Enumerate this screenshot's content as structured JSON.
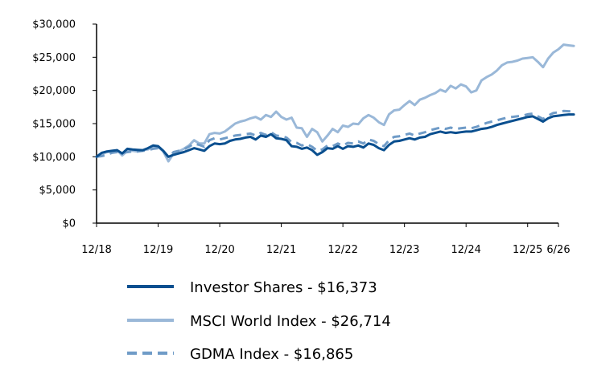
{
  "chart_data": {
    "type": "line",
    "title": "",
    "xlabel": "",
    "ylabel": "",
    "ylim": [
      0,
      30000
    ],
    "y_ticks": [
      0,
      5000,
      10000,
      15000,
      20000,
      25000,
      30000
    ],
    "y_tick_labels": [
      "$0",
      "$5,000",
      "$10,000",
      "$15,000",
      "$20,000",
      "$25,000",
      "$30,000"
    ],
    "x_tick_labels": [
      "12/18",
      "12/19",
      "12/20",
      "12/21",
      "12/22",
      "12/23",
      "12/24",
      "12/25",
      "6/26"
    ],
    "x_unit": "months since 12/18",
    "x_tick_positions": [
      0,
      12,
      24,
      36,
      48,
      60,
      72,
      84,
      90
    ],
    "xlim": [
      0,
      96
    ],
    "grid": false,
    "legend_position": "bottom",
    "series": [
      {
        "name": "Investor Shares - $16,373",
        "color": "#0a4f8f",
        "style": "solid",
        "points": [
          [
            0,
            10000
          ],
          [
            1,
            10600
          ],
          [
            2,
            10800
          ],
          [
            3,
            10900
          ],
          [
            4,
            11000
          ],
          [
            5,
            10500
          ],
          [
            6,
            11200
          ],
          [
            7,
            11100
          ],
          [
            8,
            11050
          ],
          [
            9,
            11000
          ],
          [
            10,
            11300
          ],
          [
            11,
            11700
          ],
          [
            12,
            11600
          ],
          [
            13,
            10900
          ],
          [
            14,
            10000
          ],
          [
            15,
            10300
          ],
          [
            16,
            10500
          ],
          [
            17,
            10700
          ],
          [
            18,
            11000
          ],
          [
            19,
            11300
          ],
          [
            20,
            11100
          ],
          [
            21,
            10900
          ],
          [
            22,
            11600
          ],
          [
            23,
            12000
          ],
          [
            24,
            11900
          ],
          [
            25,
            12000
          ],
          [
            26,
            12400
          ],
          [
            27,
            12600
          ],
          [
            28,
            12700
          ],
          [
            29,
            12900
          ],
          [
            30,
            13000
          ],
          [
            31,
            12600
          ],
          [
            32,
            13200
          ],
          [
            33,
            13000
          ],
          [
            34,
            13400
          ],
          [
            35,
            12800
          ],
          [
            36,
            12700
          ],
          [
            37,
            12500
          ],
          [
            38,
            11600
          ],
          [
            39,
            11500
          ],
          [
            40,
            11200
          ],
          [
            41,
            11400
          ],
          [
            42,
            11000
          ],
          [
            43,
            10300
          ],
          [
            44,
            10700
          ],
          [
            45,
            11300
          ],
          [
            46,
            11200
          ],
          [
            47,
            11600
          ],
          [
            48,
            11200
          ],
          [
            49,
            11600
          ],
          [
            50,
            11500
          ],
          [
            51,
            11700
          ],
          [
            52,
            11400
          ],
          [
            53,
            12000
          ],
          [
            54,
            11800
          ],
          [
            55,
            11300
          ],
          [
            56,
            11000
          ],
          [
            57,
            11800
          ],
          [
            58,
            12300
          ],
          [
            59,
            12400
          ],
          [
            60,
            12600
          ],
          [
            61,
            12800
          ],
          [
            62,
            12600
          ],
          [
            63,
            12900
          ],
          [
            64,
            13000
          ],
          [
            65,
            13400
          ],
          [
            66,
            13600
          ],
          [
            67,
            13800
          ],
          [
            68,
            13600
          ],
          [
            69,
            13700
          ],
          [
            70,
            13600
          ],
          [
            71,
            13700
          ],
          [
            72,
            13800
          ],
          [
            73,
            13800
          ],
          [
            74,
            14000
          ],
          [
            75,
            14200
          ],
          [
            76,
            14300
          ],
          [
            77,
            14500
          ],
          [
            78,
            14800
          ],
          [
            79,
            15000
          ],
          [
            80,
            15200
          ],
          [
            81,
            15400
          ],
          [
            82,
            15600
          ],
          [
            83,
            15800
          ],
          [
            84,
            16000
          ],
          [
            85,
            16100
          ],
          [
            86,
            15700
          ],
          [
            87,
            15300
          ],
          [
            88,
            15800
          ],
          [
            89,
            16100
          ],
          [
            90,
            16200
          ],
          [
            91,
            16300
          ],
          [
            92,
            16373
          ],
          [
            93,
            16373
          ]
        ]
      },
      {
        "name": "MSCI World Index - $26,714",
        "color": "#9ab8d8",
        "style": "solid",
        "points": [
          [
            0,
            10000
          ],
          [
            1,
            10400
          ],
          [
            2,
            10700
          ],
          [
            3,
            10800
          ],
          [
            4,
            11000
          ],
          [
            5,
            10200
          ],
          [
            6,
            10900
          ],
          [
            7,
            10900
          ],
          [
            8,
            10800
          ],
          [
            9,
            11000
          ],
          [
            10,
            11100
          ],
          [
            11,
            11500
          ],
          [
            12,
            11500
          ],
          [
            13,
            10800
          ],
          [
            14,
            9300
          ],
          [
            15,
            10500
          ],
          [
            16,
            10800
          ],
          [
            17,
            11200
          ],
          [
            18,
            11700
          ],
          [
            19,
            12500
          ],
          [
            20,
            12000
          ],
          [
            21,
            12000
          ],
          [
            22,
            13400
          ],
          [
            23,
            13600
          ],
          [
            24,
            13500
          ],
          [
            25,
            13800
          ],
          [
            26,
            14400
          ],
          [
            27,
            15000
          ],
          [
            28,
            15300
          ],
          [
            29,
            15500
          ],
          [
            30,
            15800
          ],
          [
            31,
            16000
          ],
          [
            32,
            15600
          ],
          [
            33,
            16300
          ],
          [
            34,
            16000
          ],
          [
            35,
            16800
          ],
          [
            36,
            16000
          ],
          [
            37,
            15600
          ],
          [
            38,
            15900
          ],
          [
            39,
            14400
          ],
          [
            40,
            14300
          ],
          [
            41,
            13000
          ],
          [
            42,
            14200
          ],
          [
            43,
            13700
          ],
          [
            44,
            12300
          ],
          [
            45,
            13200
          ],
          [
            46,
            14200
          ],
          [
            47,
            13700
          ],
          [
            48,
            14700
          ],
          [
            49,
            14500
          ],
          [
            50,
            15000
          ],
          [
            51,
            14900
          ],
          [
            52,
            15800
          ],
          [
            53,
            16300
          ],
          [
            54,
            15900
          ],
          [
            55,
            15200
          ],
          [
            56,
            14800
          ],
          [
            57,
            16400
          ],
          [
            58,
            17000
          ],
          [
            59,
            17100
          ],
          [
            60,
            17800
          ],
          [
            61,
            18400
          ],
          [
            62,
            17800
          ],
          [
            63,
            18600
          ],
          [
            64,
            18900
          ],
          [
            65,
            19300
          ],
          [
            66,
            19600
          ],
          [
            67,
            20100
          ],
          [
            68,
            19800
          ],
          [
            69,
            20700
          ],
          [
            70,
            20300
          ],
          [
            71,
            20900
          ],
          [
            72,
            20600
          ],
          [
            73,
            19700
          ],
          [
            74,
            20000
          ],
          [
            75,
            21500
          ],
          [
            76,
            22000
          ],
          [
            77,
            22400
          ],
          [
            78,
            23000
          ],
          [
            79,
            23800
          ],
          [
            80,
            24200
          ],
          [
            81,
            24300
          ],
          [
            82,
            24500
          ],
          [
            83,
            24800
          ],
          [
            84,
            24900
          ],
          [
            85,
            25000
          ],
          [
            86,
            24300
          ],
          [
            87,
            23500
          ],
          [
            88,
            24800
          ],
          [
            89,
            25700
          ],
          [
            90,
            26200
          ],
          [
            91,
            26900
          ],
          [
            92,
            26800
          ],
          [
            93,
            26714
          ]
        ]
      },
      {
        "name": "GDMA Index - $16,865",
        "color": "#6f9bc7",
        "style": "dashed",
        "points": [
          [
            0,
            10000
          ],
          [
            1,
            10100
          ],
          [
            2,
            10300
          ],
          [
            3,
            10600
          ],
          [
            4,
            10700
          ],
          [
            5,
            10600
          ],
          [
            6,
            10700
          ],
          [
            7,
            10800
          ],
          [
            8,
            10800
          ],
          [
            9,
            10900
          ],
          [
            10,
            11000
          ],
          [
            11,
            11200
          ],
          [
            12,
            11300
          ],
          [
            13,
            10800
          ],
          [
            14,
            9900
          ],
          [
            15,
            10700
          ],
          [
            16,
            10900
          ],
          [
            17,
            11100
          ],
          [
            18,
            11500
          ],
          [
            19,
            12000
          ],
          [
            20,
            11800
          ],
          [
            21,
            11500
          ],
          [
            22,
            12500
          ],
          [
            23,
            12800
          ],
          [
            24,
            12600
          ],
          [
            25,
            12800
          ],
          [
            26,
            13000
          ],
          [
            27,
            13200
          ],
          [
            28,
            13300
          ],
          [
            29,
            13400
          ],
          [
            30,
            13500
          ],
          [
            31,
            13200
          ],
          [
            32,
            13600
          ],
          [
            33,
            13300
          ],
          [
            34,
            13700
          ],
          [
            35,
            13200
          ],
          [
            36,
            13100
          ],
          [
            37,
            12900
          ],
          [
            38,
            12200
          ],
          [
            39,
            12100
          ],
          [
            40,
            11700
          ],
          [
            41,
            11900
          ],
          [
            42,
            11500
          ],
          [
            43,
            10900
          ],
          [
            44,
            11100
          ],
          [
            45,
            11700
          ],
          [
            46,
            11600
          ],
          [
            47,
            12000
          ],
          [
            48,
            11700
          ],
          [
            49,
            12100
          ],
          [
            50,
            12000
          ],
          [
            51,
            12300
          ],
          [
            52,
            12000
          ],
          [
            53,
            12600
          ],
          [
            54,
            12400
          ],
          [
            55,
            11900
          ],
          [
            56,
            11600
          ],
          [
            57,
            12500
          ],
          [
            58,
            13000
          ],
          [
            59,
            13100
          ],
          [
            60,
            13300
          ],
          [
            61,
            13500
          ],
          [
            62,
            13200
          ],
          [
            63,
            13500
          ],
          [
            64,
            13700
          ],
          [
            65,
            14000
          ],
          [
            66,
            14200
          ],
          [
            67,
            14400
          ],
          [
            68,
            14200
          ],
          [
            69,
            14400
          ],
          [
            70,
            14200
          ],
          [
            71,
            14300
          ],
          [
            72,
            14400
          ],
          [
            73,
            14300
          ],
          [
            74,
            14500
          ],
          [
            75,
            14800
          ],
          [
            76,
            15100
          ],
          [
            77,
            15300
          ],
          [
            78,
            15500
          ],
          [
            79,
            15700
          ],
          [
            80,
            15900
          ],
          [
            81,
            16000
          ],
          [
            82,
            16100
          ],
          [
            83,
            16200
          ],
          [
            84,
            16400
          ],
          [
            85,
            16500
          ],
          [
            86,
            16100
          ],
          [
            87,
            15700
          ],
          [
            88,
            16200
          ],
          [
            89,
            16600
          ],
          [
            90,
            16700
          ],
          [
            91,
            16900
          ],
          [
            92,
            16865
          ],
          [
            93,
            16865
          ]
        ]
      }
    ]
  }
}
